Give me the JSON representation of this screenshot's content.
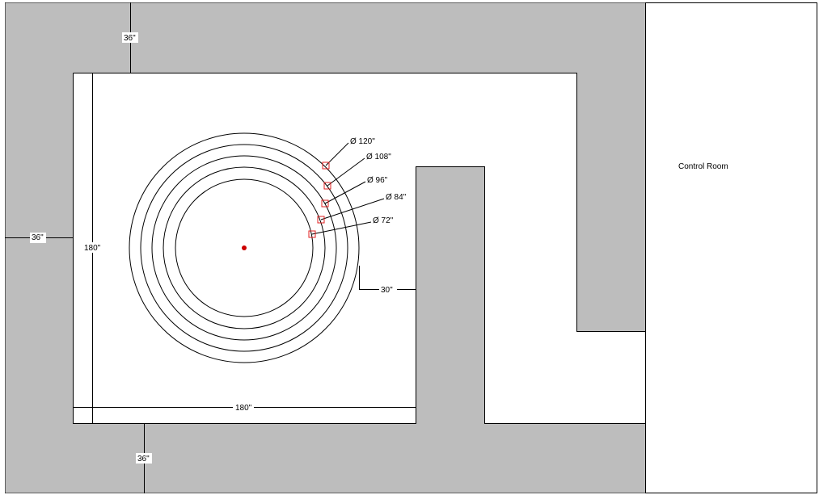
{
  "walls": {
    "fill_color": "#bdbdbd",
    "line_color": "#000000"
  },
  "room_labels": {
    "control_room": "Control Room"
  },
  "dimensions": {
    "wall_top": "36\"",
    "wall_left": "36\"",
    "wall_bottom": "36\"",
    "room_height": "180\"",
    "room_width": "180\"",
    "clearance": "30\""
  },
  "circles": {
    "marker_color": "#e02020",
    "center_color": "#cc0000",
    "labels": [
      "Ø 120\"",
      "Ø 108\"",
      "Ø 96\"",
      "Ø 84\"",
      "Ø 72\""
    ]
  }
}
